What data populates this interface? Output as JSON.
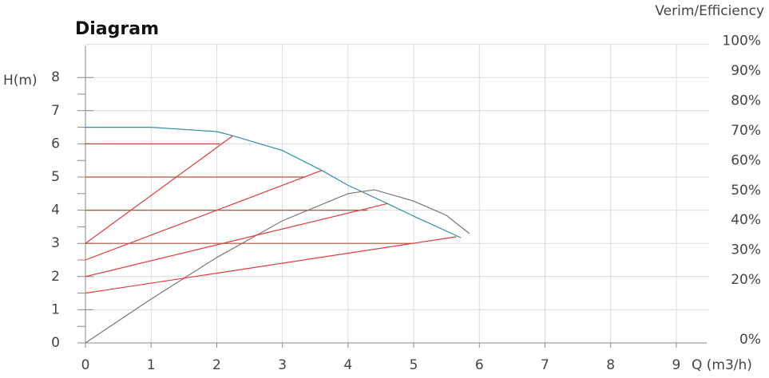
{
  "chart_data": {
    "type": "line",
    "title": "Diagram",
    "y_label": "H(m)",
    "y2_label": "Verim/Efficiency",
    "x_label": "Q (m3/h)",
    "xlim": [
      0,
      9.5
    ],
    "xticks": [
      0,
      1,
      2,
      3,
      4,
      5,
      6,
      7,
      8,
      9
    ],
    "ylim": [
      0,
      9
    ],
    "yticks": [
      0,
      1,
      2,
      3,
      4,
      5,
      6,
      7,
      8
    ],
    "y2lim": [
      0,
      100
    ],
    "y2ticks": [
      {
        "value": 0,
        "label": "0%"
      },
      {
        "value": 20,
        "label": "20%"
      },
      {
        "value": 30,
        "label": "30%"
      },
      {
        "value": 40,
        "label": "40%"
      },
      {
        "value": 50,
        "label": "50%"
      },
      {
        "value": 60,
        "label": "60%"
      },
      {
        "value": 70,
        "label": "70%"
      },
      {
        "value": 80,
        "label": "80%"
      },
      {
        "value": 90,
        "label": "90%"
      },
      {
        "value": 100,
        "label": "100%"
      }
    ],
    "grid": true,
    "series": [
      {
        "color": "#2e8fa5",
        "x": [
          0,
          1,
          2,
          2.2,
          3,
          3.6,
          4,
          4.6,
          5,
          5.72
        ],
        "values": [
          6.5,
          6.5,
          6.37,
          6.27,
          5.8,
          5.2,
          4.75,
          4.2,
          3.82,
          3.17
        ]
      },
      {
        "color": "#777777",
        "axis": "y2",
        "x": [
          0,
          1,
          2,
          3,
          4,
          4.4,
          5,
          5.5,
          5.85
        ],
        "values": [
          0,
          14.7,
          28.6,
          40.9,
          50,
          51.3,
          47.5,
          42.7,
          36.6
        ]
      },
      {
        "color": "#e23a3a",
        "x": [
          0,
          2.25
        ],
        "values": [
          3,
          6.25
        ]
      },
      {
        "color": "#e23a3a",
        "x": [
          0,
          3.6
        ],
        "values": [
          2.5,
          5.2
        ]
      },
      {
        "color": "#e23a3a",
        "x": [
          0,
          4.6
        ],
        "values": [
          2,
          4.2
        ]
      },
      {
        "color": "#e23a3a",
        "x": [
          0,
          5.65
        ],
        "values": [
          1.5,
          3.2
        ]
      },
      {
        "color": "#b5553c",
        "x": [
          0,
          2.05
        ],
        "values": [
          6,
          6
        ]
      },
      {
        "color": "#b5553c",
        "x": [
          0,
          3.35
        ],
        "values": [
          5,
          5
        ]
      },
      {
        "color": "#b5553c",
        "x": [
          0,
          4.3
        ],
        "values": [
          4,
          4
        ]
      },
      {
        "color": "#b5553c",
        "x": [
          0,
          5.0
        ],
        "values": [
          3,
          3
        ]
      }
    ]
  }
}
